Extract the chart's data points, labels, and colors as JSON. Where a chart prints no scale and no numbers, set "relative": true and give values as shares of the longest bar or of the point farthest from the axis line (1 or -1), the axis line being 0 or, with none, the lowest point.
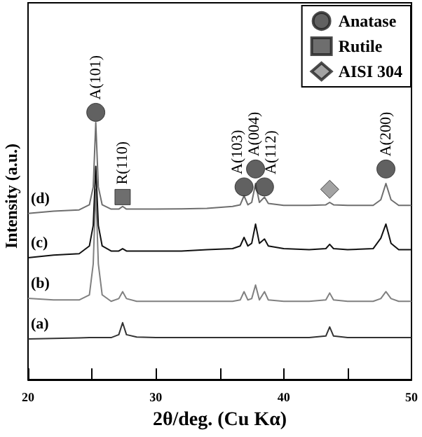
{
  "chart_data": {
    "type": "line",
    "xlabel": "2θ/deg. (Cu Kα)",
    "ylabel": "Intensity (a.u.)",
    "relative": true,
    "xlim": [
      20,
      50
    ],
    "xticks": [
      20,
      {
        "value": 25,
        "label": null
      },
      30,
      {
        "value": 35,
        "label": null
      },
      40,
      {
        "value": 45,
        "label": null
      },
      50
    ],
    "legend": "top right",
    "marker": "none",
    "line_style": "solid",
    "x": [
      20,
      22,
      24,
      24.8,
      25.1,
      25.3,
      25.5,
      25.8,
      26.5,
      27.1,
      27.4,
      27.7,
      28.5,
      30,
      32,
      34,
      36,
      36.6,
      36.9,
      37.2,
      37.5,
      37.8,
      38.1,
      38.5,
      38.8,
      40,
      42,
      43.3,
      43.6,
      43.9,
      45,
      47,
      47.6,
      48.0,
      48.4,
      49,
      50
    ],
    "series": [
      {
        "name": "(a)",
        "color": "#333333",
        "values": [
          0.152,
          0.154,
          0.156,
          0.157,
          0.157,
          0.157,
          0.157,
          0.157,
          0.157,
          0.168,
          0.213,
          0.168,
          0.159,
          0.157,
          0.157,
          0.157,
          0.157,
          0.157,
          0.157,
          0.157,
          0.157,
          0.157,
          0.157,
          0.157,
          0.157,
          0.157,
          0.157,
          0.163,
          0.197,
          0.163,
          0.157,
          0.157,
          0.157,
          0.157,
          0.157,
          0.157,
          0.157
        ]
      },
      {
        "name": "(b)",
        "color": "#808080",
        "values": [
          0.304,
          0.298,
          0.298,
          0.317,
          0.433,
          0.712,
          0.433,
          0.317,
          0.293,
          0.303,
          0.329,
          0.303,
          0.293,
          0.293,
          0.293,
          0.293,
          0.293,
          0.298,
          0.329,
          0.298,
          0.303,
          0.354,
          0.298,
          0.329,
          0.298,
          0.293,
          0.293,
          0.298,
          0.324,
          0.298,
          0.293,
          0.293,
          0.303,
          0.329,
          0.303,
          0.293,
          0.293
        ]
      },
      {
        "name": "(c)",
        "color": "#111111",
        "values": [
          0.456,
          0.466,
          0.471,
          0.5,
          0.577,
          0.798,
          0.577,
          0.5,
          0.481,
          0.481,
          0.49,
          0.481,
          0.481,
          0.481,
          0.481,
          0.486,
          0.49,
          0.5,
          0.532,
          0.5,
          0.51,
          0.582,
          0.51,
          0.526,
          0.5,
          0.49,
          0.486,
          0.49,
          0.506,
          0.49,
          0.486,
          0.49,
          0.529,
          0.582,
          0.51,
          0.486,
          0.486
        ]
      },
      {
        "name": "(d)",
        "color": "#6e6e6e",
        "values": [
          0.622,
          0.63,
          0.635,
          0.654,
          0.721,
          0.962,
          0.721,
          0.654,
          0.638,
          0.638,
          0.648,
          0.638,
          0.638,
          0.638,
          0.639,
          0.641,
          0.648,
          0.654,
          0.688,
          0.654,
          0.663,
          0.734,
          0.663,
          0.683,
          0.659,
          0.652,
          0.652,
          0.654,
          0.663,
          0.654,
          0.652,
          0.652,
          0.673,
          0.734,
          0.673,
          0.652,
          0.652
        ]
      },
      {
        "name": "Anatase",
        "type": "scatter",
        "marker": "circle",
        "color": "#3a3a3a",
        "x": [
          25.3,
          36.9,
          37.8,
          38.5,
          48.0
        ],
        "values": [
          1.0,
          0.721,
          0.788,
          0.721,
          0.788
        ]
      },
      {
        "name": "Rutile",
        "type": "scatter",
        "marker": "square",
        "color": "#4a4a4a",
        "x": [
          27.4
        ],
        "values": [
          0.683
        ]
      },
      {
        "name": "AISI 304",
        "type": "scatter",
        "marker": "diamond",
        "color": "#8c8c8c",
        "x": [
          43.6
        ],
        "values": [
          0.712
        ]
      }
    ],
    "annotations": [
      {
        "text": "A(101)",
        "x": 25.3,
        "y": 1.0
      },
      {
        "text": "R(110)",
        "x": 27.4,
        "y": 0.683
      },
      {
        "text": "A(103)",
        "x": 36.9,
        "y": 0.721
      },
      {
        "text": "A(004)",
        "x": 37.8,
        "y": 0.788
      },
      {
        "text": "A(112)",
        "x": 38.5,
        "y": 0.721
      },
      {
        "text": "A(200)",
        "x": 48.0,
        "y": 0.788
      }
    ]
  }
}
